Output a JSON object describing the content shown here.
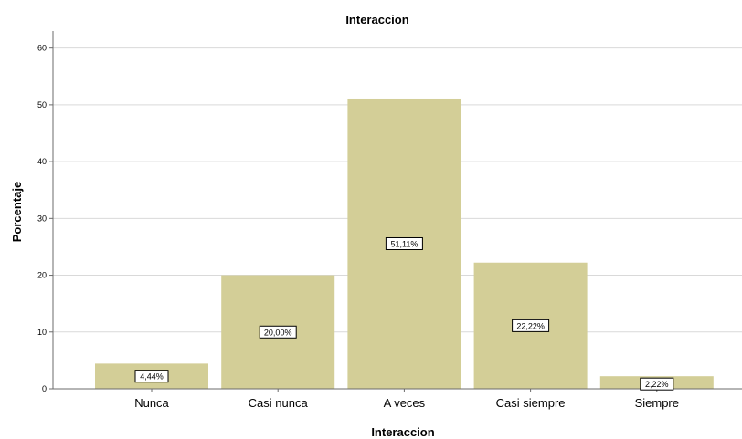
{
  "chart_data": {
    "type": "bar",
    "title": "Interaccion",
    "xlabel": "Interaccion",
    "ylabel": "Porcentaje",
    "categories": [
      "Nunca",
      "Casi nunca",
      "A veces",
      "Casi siempre",
      "Siempre"
    ],
    "values": [
      4.44,
      20.0,
      51.11,
      22.22,
      2.22
    ],
    "data_labels": [
      "4,44%",
      "20,00%",
      "51,11%",
      "22,22%",
      "2,22%"
    ],
    "yticks": [
      "0",
      "10",
      "20",
      "30",
      "40",
      "50",
      "60"
    ],
    "ylim": [
      0,
      63
    ],
    "grid": true,
    "legend": "none",
    "colors": {
      "bar": "#d3ce97",
      "grid": "#d9d9d9",
      "axis": "#6b6b6b"
    }
  }
}
